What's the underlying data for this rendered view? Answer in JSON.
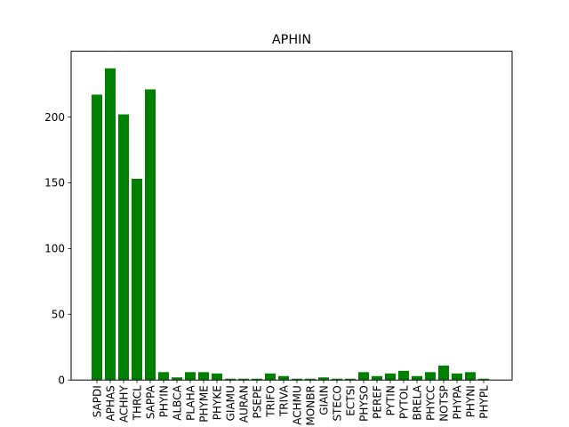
{
  "chart_data": {
    "type": "bar",
    "title": "APHIN",
    "xlabel": "",
    "ylabel": "",
    "ylim": [
      0,
      250
    ],
    "yticks": [
      0,
      50,
      100,
      150,
      200
    ],
    "grid": false,
    "bar_color": "#008000",
    "categories": [
      "SAPDI",
      "APHAS",
      "ACHHY",
      "THRCL",
      "SAPPA",
      "PHYIN",
      "ALBCA",
      "PLAHA",
      "PHYME",
      "PHYKE",
      "GIAMU",
      "AURAN",
      "PSEPE",
      "TRIFO",
      "TRIVA",
      "ACHMU",
      "MONBR",
      "GIAIN",
      "STECO",
      "ECTSI",
      "PHYSO",
      "PEREF",
      "PYTIN",
      "PYTOL",
      "BRELA",
      "PHYCC",
      "NOTSP",
      "PHYPA",
      "PHYNI",
      "PHYPL"
    ],
    "values": [
      217,
      237,
      202,
      153,
      221,
      6,
      2,
      6,
      6,
      5,
      1,
      1,
      1,
      5,
      3,
      1,
      1,
      2,
      1,
      1,
      6,
      3,
      5,
      7,
      3,
      6,
      11,
      5,
      6,
      1
    ]
  }
}
